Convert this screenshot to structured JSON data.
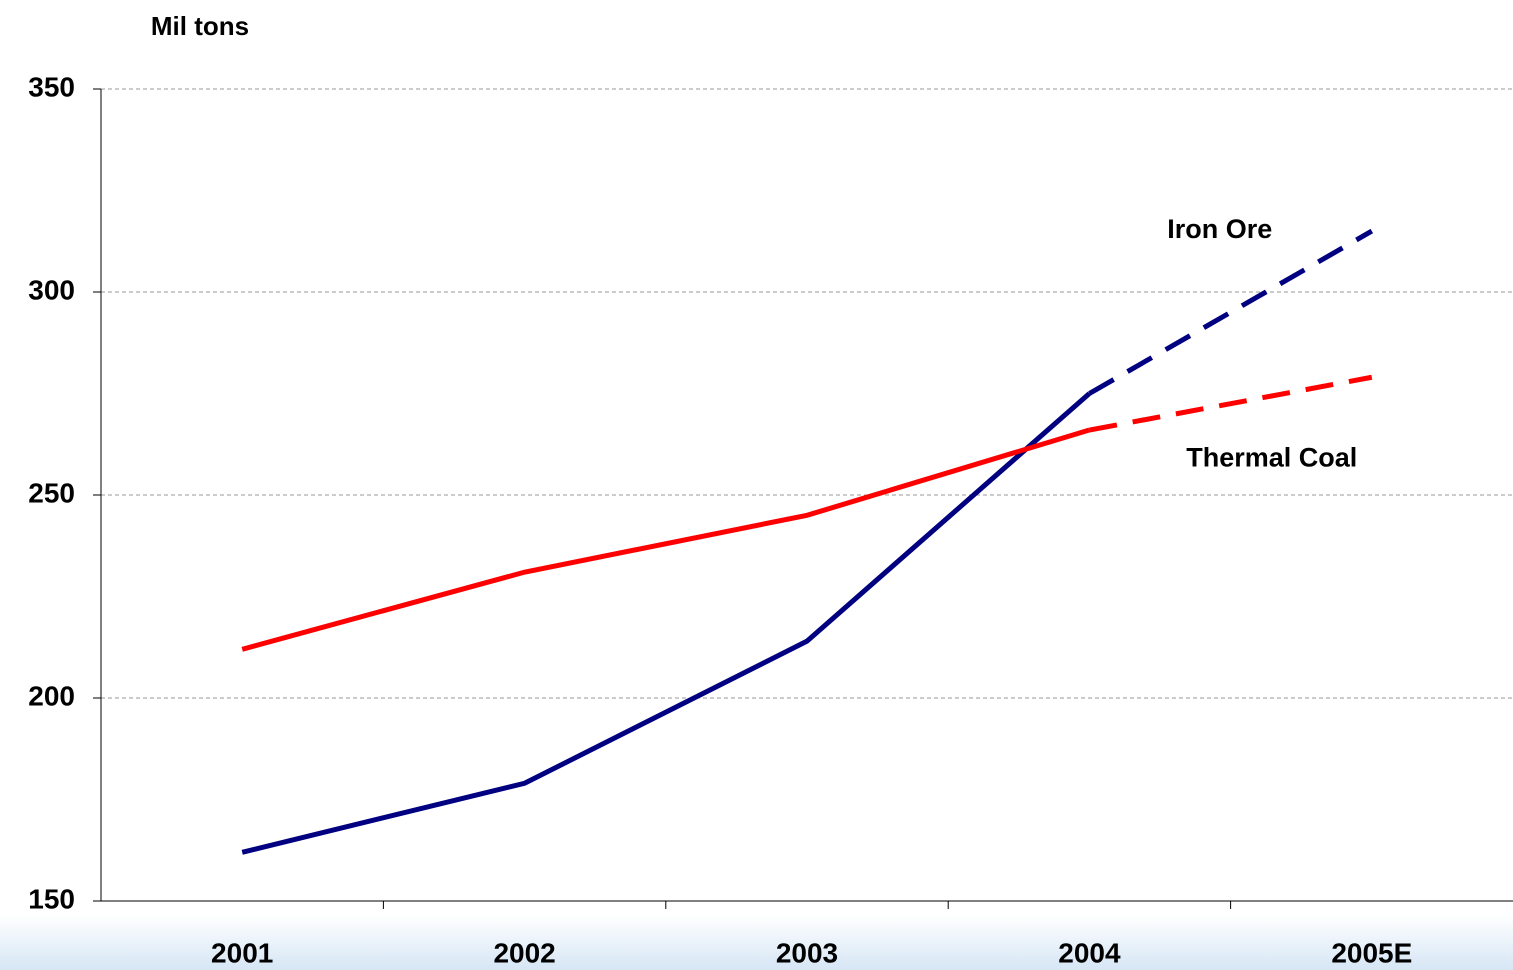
{
  "chart_data": {
    "type": "line",
    "y_label": "Mil tons",
    "categories": [
      "2001",
      "2002",
      "2003",
      "2004",
      "2005E"
    ],
    "ylim": [
      150,
      350
    ],
    "yticks": [
      150,
      200,
      250,
      300,
      350
    ],
    "grid": true,
    "dash_from": 3,
    "series": [
      {
        "name": "Iron Ore",
        "color": "#000080",
        "values": [
          162,
          179,
          214,
          275,
          315
        ]
      },
      {
        "name": "Thermal Coal",
        "color": "#ff0000",
        "values": [
          212,
          231,
          245,
          266,
          279
        ]
      }
    ]
  }
}
